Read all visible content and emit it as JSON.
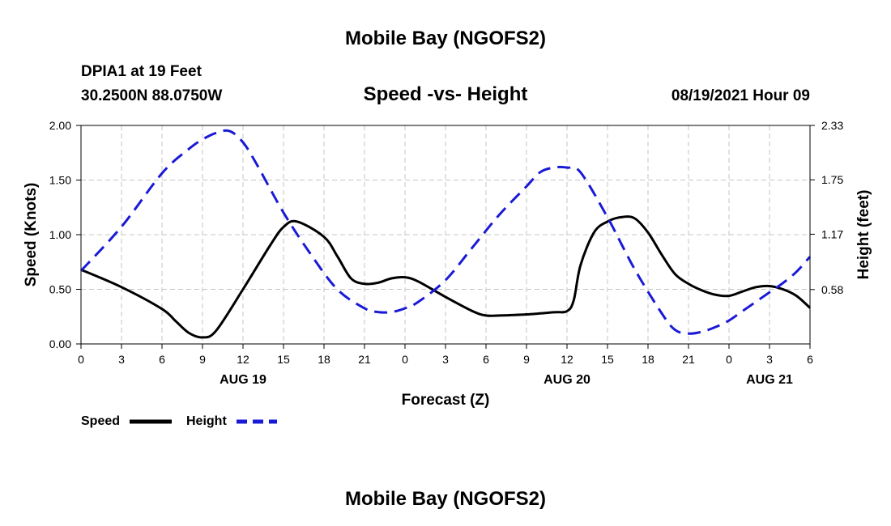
{
  "header": {
    "title": "Mobile Bay (NGOFS2)",
    "station": "DPIA1 at 19 Feet",
    "coordinates": "30.2500N  88.0750W",
    "subtitle": "Speed -vs- Height",
    "datetime": "08/19/2021 Hour 09"
  },
  "footer": {
    "title": "Mobile Bay (NGOFS2)"
  },
  "chart_data": {
    "type": "line",
    "title": "Speed -vs- Height",
    "xlabel": "Forecast (Z)",
    "ylabel": "Speed (Knots)",
    "y2label": "Height (feet)",
    "x_unit": "hours from 08/19 00Z",
    "xlim": [
      0,
      54
    ],
    "ylim": [
      0,
      2.0
    ],
    "y2lim": [
      0,
      2.33
    ],
    "x_ticks": [
      0,
      3,
      6,
      9,
      12,
      15,
      18,
      21,
      24,
      27,
      30,
      33,
      36,
      39,
      42,
      45,
      48,
      51,
      54
    ],
    "x_tick_labels": [
      "0",
      "3",
      "6",
      "9",
      "12",
      "15",
      "18",
      "21",
      "0",
      "3",
      "6",
      "9",
      "12",
      "15",
      "18",
      "21",
      "0",
      "3",
      "6"
    ],
    "y_ticks": [
      0,
      0.5,
      1.0,
      1.5,
      2.0
    ],
    "y_tick_labels": [
      "0.00",
      "0.50",
      "1.00",
      "1.50",
      "2.00"
    ],
    "y2_ticks": [
      0.58,
      1.17,
      1.75,
      2.33
    ],
    "y2_tick_labels": [
      "0.58",
      "1.17",
      "1.75",
      "2.33"
    ],
    "date_labels": [
      {
        "x": 12,
        "label": "AUG 19"
      },
      {
        "x": 36,
        "label": "AUG 20"
      },
      {
        "x": 51,
        "label": "AUG 21"
      }
    ],
    "grid": true,
    "legend_position": "bottom-left",
    "series": [
      {
        "name": "Speed",
        "axis": "left",
        "style": "solid",
        "color": "#000000",
        "x": [
          0,
          3,
          6,
          7,
          8,
          9,
          10,
          12,
          14,
          15,
          16,
          18,
          19,
          20,
          21,
          22,
          23,
          24,
          25,
          27,
          29,
          30,
          31,
          33,
          35,
          36,
          36.5,
          37,
          38,
          39,
          40,
          41,
          42,
          43,
          44,
          45,
          46,
          47,
          48,
          49,
          50,
          51,
          52,
          53,
          54
        ],
        "values": [
          0.68,
          0.52,
          0.32,
          0.21,
          0.1,
          0.06,
          0.12,
          0.5,
          0.9,
          1.07,
          1.12,
          0.98,
          0.8,
          0.6,
          0.55,
          0.56,
          0.6,
          0.61,
          0.57,
          0.43,
          0.3,
          0.26,
          0.26,
          0.27,
          0.29,
          0.3,
          0.4,
          0.72,
          1.02,
          1.12,
          1.16,
          1.15,
          1.02,
          0.82,
          0.64,
          0.55,
          0.49,
          0.45,
          0.44,
          0.48,
          0.52,
          0.53,
          0.5,
          0.44,
          0.33
        ]
      },
      {
        "name": "Height",
        "axis": "right",
        "style": "dashed",
        "color": "#0000ff",
        "x": [
          0,
          3,
          6,
          8,
          9,
          10,
          11,
          12,
          13,
          15,
          17,
          19,
          21,
          22,
          23,
          24,
          25,
          27,
          29,
          31,
          33,
          34,
          35,
          36,
          37,
          39,
          41,
          43,
          44,
          45,
          46,
          47,
          48,
          49,
          50,
          51,
          52,
          53,
          54
        ],
        "values": [
          0.78,
          1.25,
          1.82,
          2.08,
          2.18,
          2.25,
          2.27,
          2.15,
          1.92,
          1.4,
          0.96,
          0.58,
          0.38,
          0.34,
          0.34,
          0.38,
          0.45,
          0.68,
          1.03,
          1.38,
          1.68,
          1.83,
          1.88,
          1.88,
          1.83,
          1.35,
          0.8,
          0.33,
          0.15,
          0.11,
          0.13,
          0.18,
          0.25,
          0.35,
          0.45,
          0.55,
          0.65,
          0.77,
          0.93
        ]
      }
    ]
  }
}
